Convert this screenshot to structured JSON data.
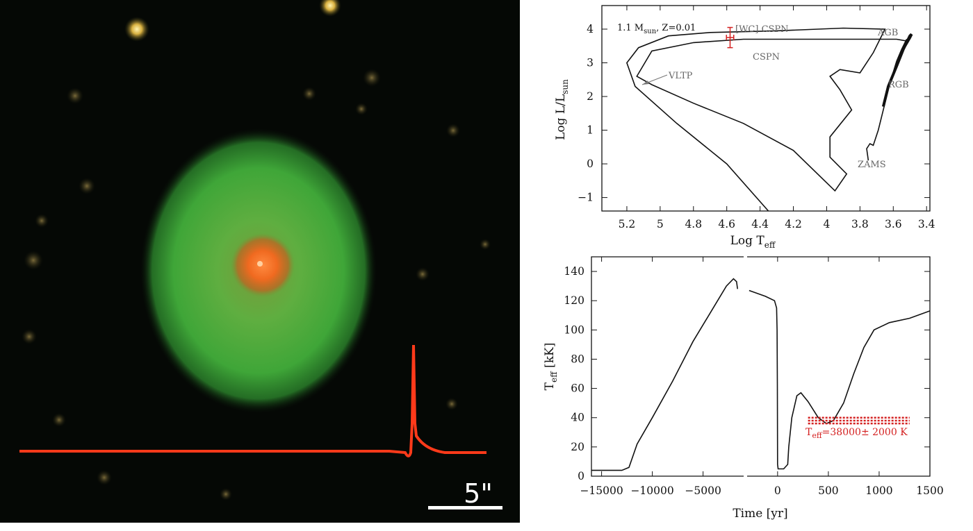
{
  "image_panel": {
    "scale_bar_label": "5\""
  },
  "chart_data": [
    {
      "type": "line",
      "name": "hr-diagram",
      "xlabel": "Log T",
      "xlabel_sub": "eff",
      "ylabel": "Log L/L",
      "ylabel_sub": "sun",
      "xlim": [
        5.35,
        3.38
      ],
      "ylim": [
        -1.4,
        4.7
      ],
      "x_ticks": [
        5.2,
        5.0,
        4.8,
        4.6,
        4.4,
        4.2,
        4.0,
        3.8,
        3.6,
        3.4
      ],
      "x_tick_labels": [
        "5.2",
        "5",
        "4.8",
        "4.6",
        "4.4",
        "4.2",
        "4",
        "3.8",
        "3.6",
        "3.4"
      ],
      "y_ticks": [
        -1,
        0,
        1,
        2,
        3,
        4
      ],
      "y_tick_labels": [
        "−1",
        "0",
        "1",
        "2",
        "3",
        "4"
      ],
      "model_label": {
        "mass": "1.1 M",
        "mass_sub": "sun",
        "metallicity": ", Z=0.01"
      },
      "labels": {
        "wc_cspn": "[WC] CSPN",
        "cspn": "CSPN",
        "vltp": "VLTP",
        "agb": "AGB",
        "rgb": "RGB",
        "zams": "ZAMS"
      },
      "track": [
        [
          3.75,
          0.1
        ],
        [
          3.76,
          0.45
        ],
        [
          3.74,
          0.6
        ],
        [
          3.72,
          0.55
        ],
        [
          3.69,
          1.0
        ],
        [
          3.66,
          1.6
        ],
        [
          3.62,
          2.4
        ],
        [
          3.58,
          3.05
        ],
        [
          3.55,
          3.4
        ],
        [
          3.52,
          3.7
        ],
        [
          3.52,
          3.65
        ],
        [
          3.58,
          3.7
        ],
        [
          3.8,
          3.7
        ],
        [
          4.1,
          3.7
        ],
        [
          4.5,
          3.7
        ],
        [
          4.8,
          3.6
        ],
        [
          5.05,
          3.35
        ],
        [
          5.14,
          2.6
        ],
        [
          5.05,
          2.35
        ],
        [
          4.8,
          1.8
        ],
        [
          4.5,
          1.2
        ],
        [
          4.2,
          0.4
        ],
        [
          3.95,
          -0.8
        ],
        [
          3.88,
          -0.3
        ],
        [
          3.98,
          0.2
        ],
        [
          3.98,
          0.8
        ],
        [
          3.85,
          1.6
        ],
        [
          3.92,
          2.2
        ],
        [
          3.98,
          2.6
        ],
        [
          3.92,
          2.8
        ],
        [
          3.8,
          2.7
        ],
        [
          3.72,
          3.3
        ],
        [
          3.65,
          4.0
        ],
        [
          3.9,
          4.03
        ],
        [
          4.3,
          3.95
        ],
        [
          4.7,
          3.9
        ],
        [
          4.95,
          3.8
        ],
        [
          5.13,
          3.45
        ],
        [
          5.2,
          3.0
        ],
        [
          5.15,
          2.3
        ],
        [
          4.9,
          1.2
        ],
        [
          4.6,
          0.0
        ],
        [
          4.35,
          -1.4
        ]
      ],
      "rgb_branch": [
        [
          3.66,
          1.7
        ],
        [
          3.63,
          2.3
        ],
        [
          3.58,
          2.9
        ],
        [
          3.54,
          3.4
        ],
        [
          3.5,
          3.8
        ],
        [
          3.49,
          3.85
        ],
        [
          3.5,
          3.75
        ],
        [
          3.53,
          3.5
        ]
      ],
      "observation": {
        "log_teff": 4.58,
        "log_teff_err": 0.022,
        "log_l": 3.75,
        "log_l_err": 0.3
      }
    },
    {
      "type": "line",
      "name": "teff-vs-time",
      "xlabel": "Time [yr]",
      "ylabel": "T",
      "ylabel_sub": "eff",
      "ylabel_unit": " [kK]",
      "ylim": [
        0,
        150
      ],
      "y_ticks": [
        0,
        20,
        40,
        60,
        80,
        100,
        120,
        140
      ],
      "y_tick_labels": [
        "0",
        "20",
        "40",
        "60",
        "80",
        "100",
        "120",
        "140"
      ],
      "left_segment": {
        "xlim": [
          -16000,
          -1000
        ],
        "x_ticks": [
          -15000,
          -10000,
          -5000
        ],
        "x_tick_labels": [
          "−15000",
          "−10000",
          "−5000"
        ],
        "series": [
          [
            -16000,
            4
          ],
          [
            -13000,
            4
          ],
          [
            -12300,
            6
          ],
          [
            -11500,
            22
          ],
          [
            -10000,
            40
          ],
          [
            -8000,
            65
          ],
          [
            -6000,
            92
          ],
          [
            -4000,
            115
          ],
          [
            -2700,
            130
          ],
          [
            -2000,
            135
          ],
          [
            -1700,
            133
          ],
          [
            -1600,
            128
          ]
        ]
      },
      "right_segment": {
        "xlim": [
          -300,
          1500
        ],
        "x_ticks": [
          0,
          500,
          1000,
          1500
        ],
        "x_tick_labels": [
          "0",
          "500",
          "1000",
          "1500"
        ],
        "series": [
          [
            -280,
            127
          ],
          [
            -120,
            123
          ],
          [
            -30,
            120
          ],
          [
            -10,
            115
          ],
          [
            -5,
            100
          ],
          [
            -2,
            63
          ],
          [
            0,
            8
          ],
          [
            5,
            5
          ],
          [
            60,
            5
          ],
          [
            100,
            8
          ],
          [
            110,
            20
          ],
          [
            140,
            40
          ],
          [
            190,
            55
          ],
          [
            230,
            57
          ],
          [
            300,
            51
          ],
          [
            400,
            40
          ],
          [
            480,
            36
          ],
          [
            550,
            38
          ],
          [
            650,
            50
          ],
          [
            750,
            70
          ],
          [
            850,
            88
          ],
          [
            950,
            100
          ],
          [
            1100,
            105
          ],
          [
            1300,
            108
          ],
          [
            1500,
            113
          ]
        ]
      },
      "observed_band": {
        "center": 38,
        "lower": 36,
        "upper": 40,
        "time_range": [
          300,
          1300
        ],
        "label": "T",
        "label_sub": "eff",
        "label_value": "=38000± 2000 K"
      }
    }
  ]
}
